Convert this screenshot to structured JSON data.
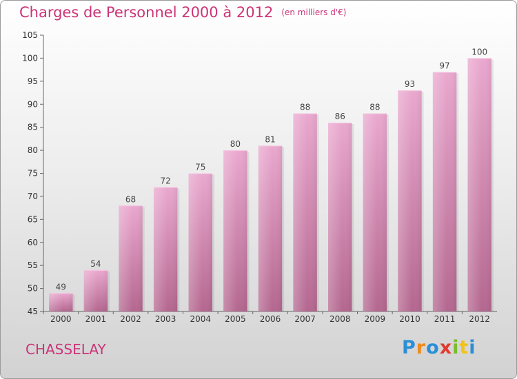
{
  "title": "Charges de Personnel 2000 à 2012",
  "subtitle": "(en milliers d'€)",
  "location": "CHASSELAY",
  "logo": {
    "letters": [
      "P",
      "r",
      "o",
      "x",
      "i",
      "t",
      "i"
    ]
  },
  "colors": {
    "title": "#cc3377",
    "bar_top": "#eaa8cf",
    "bar_bottom": "#b4678f"
  },
  "chart_data": {
    "type": "bar",
    "title": "Charges de Personnel 2000 à 2012",
    "subtitle": "(en milliers d'€)",
    "xlabel": "",
    "ylabel": "",
    "categories": [
      "2000",
      "2001",
      "2002",
      "2003",
      "2004",
      "2005",
      "2006",
      "2007",
      "2008",
      "2009",
      "2010",
      "2011",
      "2012"
    ],
    "values": [
      49,
      54,
      68,
      72,
      75,
      80,
      81,
      88,
      86,
      88,
      93,
      97,
      100
    ],
    "ylim": [
      45,
      105
    ],
    "yticks": [
      45,
      50,
      55,
      60,
      65,
      70,
      75,
      80,
      85,
      90,
      95,
      100,
      105
    ],
    "grid": false
  }
}
